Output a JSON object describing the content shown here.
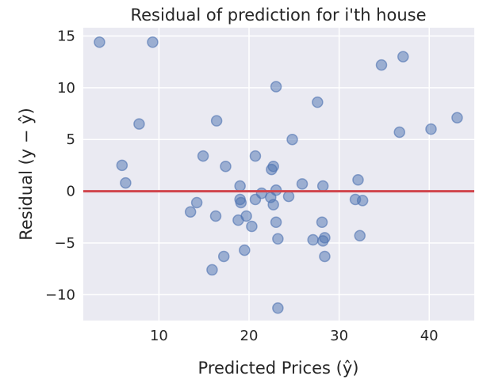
{
  "chart_data": {
    "type": "scatter",
    "title": "Residual of prediction for i'th house",
    "xlabel": "Predicted Prices (ŷ)",
    "ylabel": "Residual (y − ŷ)",
    "xlim": [
      1.6,
      45.0
    ],
    "ylim": [
      -12.5,
      15.8
    ],
    "xticks": [
      10,
      20,
      30,
      40
    ],
    "yticks": [
      -10,
      -5,
      0,
      5,
      10,
      15
    ],
    "grid": true,
    "point_color": "#4c72b0",
    "reference_line": {
      "y": 0,
      "color": "#d0454c"
    },
    "points": [
      [
        3.4,
        14.4
      ],
      [
        9.3,
        14.4
      ],
      [
        7.8,
        6.5
      ],
      [
        23.0,
        10.1
      ],
      [
        16.4,
        6.8
      ],
      [
        27.6,
        8.6
      ],
      [
        34.7,
        12.2
      ],
      [
        37.1,
        13.0
      ],
      [
        36.7,
        5.7
      ],
      [
        40.2,
        6.0
      ],
      [
        43.1,
        7.1
      ],
      [
        24.8,
        5.0
      ],
      [
        5.9,
        2.5
      ],
      [
        6.3,
        0.8
      ],
      [
        14.9,
        3.4
      ],
      [
        17.4,
        2.4
      ],
      [
        20.7,
        3.4
      ],
      [
        22.7,
        2.4
      ],
      [
        22.5,
        2.1
      ],
      [
        25.9,
        0.7
      ],
      [
        28.2,
        0.5
      ],
      [
        32.1,
        1.1
      ],
      [
        19.0,
        0.5
      ],
      [
        21.4,
        -0.2
      ],
      [
        22.4,
        -0.6
      ],
      [
        23.0,
        0.1
      ],
      [
        24.4,
        -0.5
      ],
      [
        22.7,
        -1.3
      ],
      [
        19.0,
        -0.8
      ],
      [
        19.1,
        -1.1
      ],
      [
        20.7,
        -0.8
      ],
      [
        14.2,
        -1.1
      ],
      [
        13.5,
        -2.0
      ],
      [
        16.3,
        -2.4
      ],
      [
        18.8,
        -2.8
      ],
      [
        19.7,
        -2.4
      ],
      [
        20.3,
        -3.4
      ],
      [
        23.0,
        -3.0
      ],
      [
        28.1,
        -3.0
      ],
      [
        31.8,
        -0.8
      ],
      [
        32.6,
        -0.9
      ],
      [
        23.2,
        -4.6
      ],
      [
        27.1,
        -4.7
      ],
      [
        28.2,
        -4.8
      ],
      [
        28.4,
        -4.5
      ],
      [
        32.3,
        -4.3
      ],
      [
        17.2,
        -6.3
      ],
      [
        19.5,
        -5.7
      ],
      [
        28.4,
        -6.3
      ],
      [
        15.9,
        -7.6
      ],
      [
        23.2,
        -11.3
      ]
    ]
  }
}
